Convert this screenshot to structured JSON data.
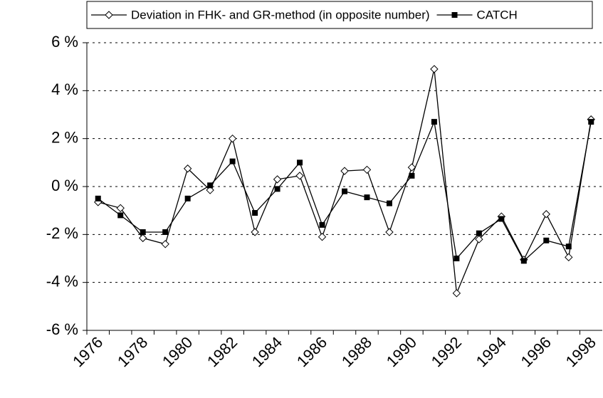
{
  "chart_data": {
    "type": "line",
    "categories": [
      "1976",
      null,
      "1978",
      null,
      "1980",
      null,
      "1982",
      null,
      "1984",
      null,
      "1986",
      null,
      "1988",
      null,
      "1990",
      null,
      "1992",
      null,
      "1994",
      null,
      "1996",
      null,
      "1998"
    ],
    "series": [
      {
        "name": "Deviation in FHK- and GR-method (in opposite number)",
        "color": "#000000",
        "marker": "diamond",
        "values": [
          -0.65,
          -0.9,
          -2.15,
          -2.4,
          0.75,
          -0.15,
          2.0,
          -1.9,
          0.3,
          0.45,
          -2.1,
          0.65,
          0.7,
          -1.9,
          0.8,
          4.9,
          -4.45,
          -2.2,
          -1.25,
          -3.05,
          -1.15,
          -2.95,
          2.8
        ]
      },
      {
        "name": "CATCH",
        "color": "#000000",
        "marker": "square",
        "values": [
          -0.5,
          -1.2,
          -1.9,
          -1.9,
          -0.5,
          0.05,
          1.05,
          -1.1,
          -0.1,
          1.0,
          -1.6,
          -0.2,
          -0.45,
          -0.7,
          0.45,
          2.7,
          -3.0,
          -1.95,
          -1.35,
          -3.1,
          -2.25,
          -2.5,
          2.7
        ]
      }
    ],
    "ylim": [
      -6,
      6
    ],
    "yticks": [
      {
        "value": -6,
        "label": "-6 %"
      },
      {
        "value": -4,
        "label": "-4 %"
      },
      {
        "value": -2,
        "label": "-2 %"
      },
      {
        "value": 0,
        "label": "0 %"
      },
      {
        "value": 2,
        "label": "2 %"
      },
      {
        "value": 4,
        "label": "4 %"
      },
      {
        "value": 6,
        "label": "6 %"
      }
    ],
    "grid": true
  }
}
